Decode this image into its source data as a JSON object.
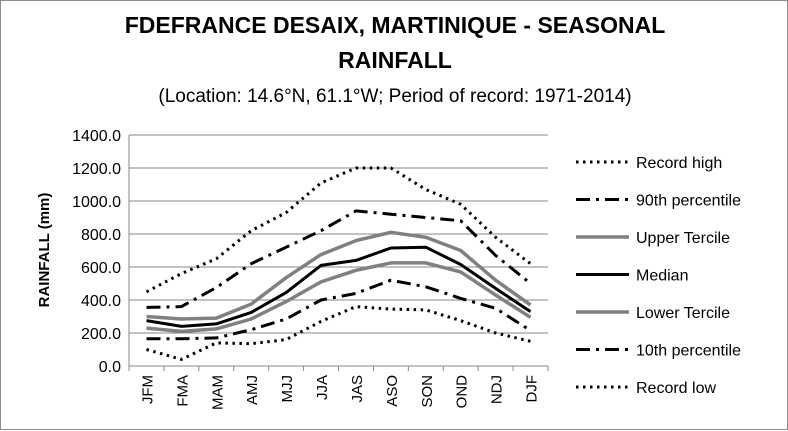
{
  "chart_data": {
    "type": "line",
    "title_line1": "FDEFRANCE DESAIX, MARTINIQUE - SEASONAL",
    "title_line2": "RAINFALL",
    "subtitle": "(Location: 14.6°N, 61.1°W; Period of record: 1971-2014)",
    "xlabel": "",
    "ylabel": "RAINFALL (mm)",
    "ylim": [
      0,
      1400
    ],
    "yticks": [
      "0.0",
      "200.0",
      "400.0",
      "600.0",
      "800.0",
      "1000.0",
      "1200.0",
      "1400.0"
    ],
    "grid": "horizontal",
    "legend_position": "right",
    "categories": [
      "JFM",
      "FMA",
      "MAM",
      "AMJ",
      "MJJ",
      "JJA",
      "JAS",
      "ASO",
      "SON",
      "OND",
      "NDJ",
      "DJF"
    ],
    "series": [
      {
        "name": "Record high",
        "color": "#000000",
        "style": "dotted",
        "values": [
          450,
          560,
          650,
          820,
          930,
          1110,
          1200,
          1200,
          1070,
          980,
          780,
          620
        ]
      },
      {
        "name": "90th percentile",
        "color": "#000000",
        "style": "dashdot",
        "values": [
          355,
          360,
          475,
          620,
          720,
          820,
          940,
          920,
          900,
          880,
          670,
          500
        ]
      },
      {
        "name": "Upper Tercile",
        "color": "#808080",
        "style": "solid-gray",
        "values": [
          300,
          285,
          290,
          375,
          535,
          675,
          760,
          810,
          780,
          700,
          520,
          370
        ]
      },
      {
        "name": "Median",
        "color": "#000000",
        "style": "solid",
        "values": [
          275,
          240,
          255,
          325,
          445,
          610,
          640,
          715,
          720,
          615,
          470,
          330
        ]
      },
      {
        "name": "Lower Tercile",
        "color": "#808080",
        "style": "solid-gray",
        "values": [
          230,
          210,
          225,
          285,
          390,
          510,
          580,
          625,
          625,
          570,
          430,
          295
        ]
      },
      {
        "name": "10th percentile",
        "color": "#000000",
        "style": "dashdot",
        "values": [
          165,
          165,
          170,
          220,
          285,
          400,
          440,
          520,
          480,
          410,
          350,
          215
        ]
      },
      {
        "name": "Record low",
        "color": "#000000",
        "style": "dotted",
        "values": [
          100,
          40,
          140,
          135,
          160,
          270,
          360,
          345,
          340,
          275,
          200,
          150
        ]
      }
    ]
  }
}
